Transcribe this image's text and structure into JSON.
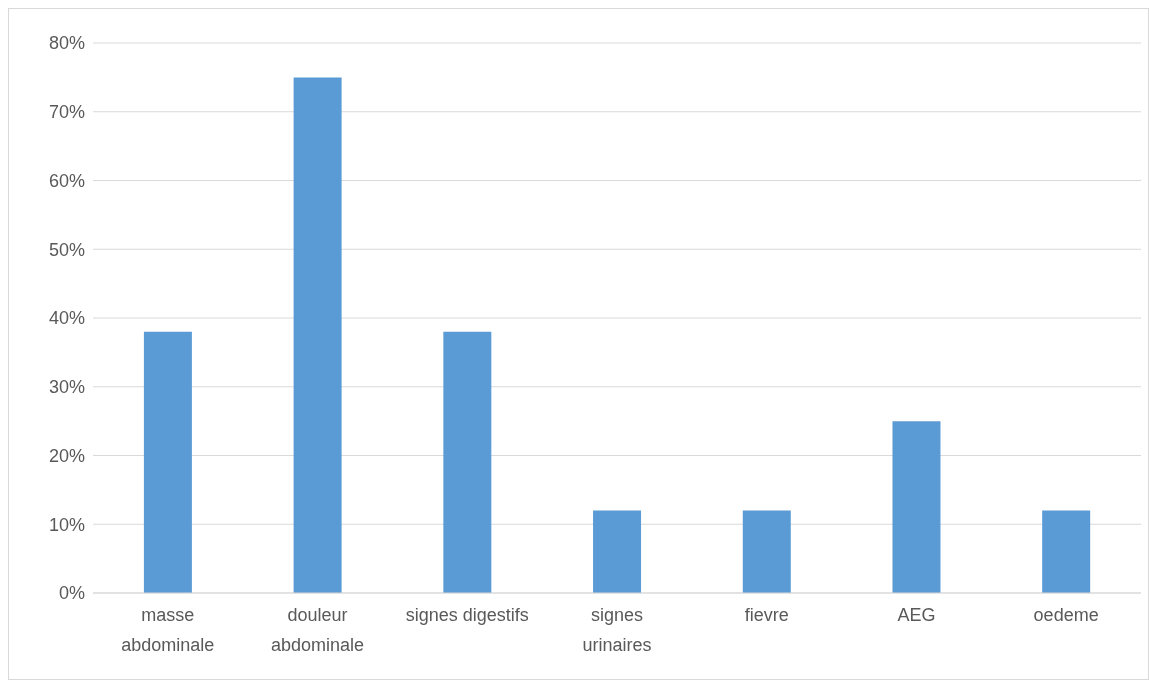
{
  "chart_data": {
    "type": "bar",
    "categories": [
      "masse abdominale",
      "douleur abdominale",
      "signes digestifs",
      "signes urinaires",
      "fievre",
      "AEG",
      "oedeme"
    ],
    "values": [
      38,
      75,
      38,
      12,
      12,
      25,
      12
    ],
    "color": "#5b9bd5",
    "ylim": [
      0,
      80
    ],
    "yticks": [
      {
        "value": 0,
        "label": "0%"
      },
      {
        "value": 10,
        "label": "10%"
      },
      {
        "value": 20,
        "label": "20%"
      },
      {
        "value": 30,
        "label": "30%"
      },
      {
        "value": 40,
        "label": "40%"
      },
      {
        "value": 50,
        "label": "50%"
      },
      {
        "value": 60,
        "label": "60%"
      },
      {
        "value": 70,
        "label": "70%"
      },
      {
        "value": 80,
        "label": "80%"
      }
    ],
    "grid": "y"
  }
}
